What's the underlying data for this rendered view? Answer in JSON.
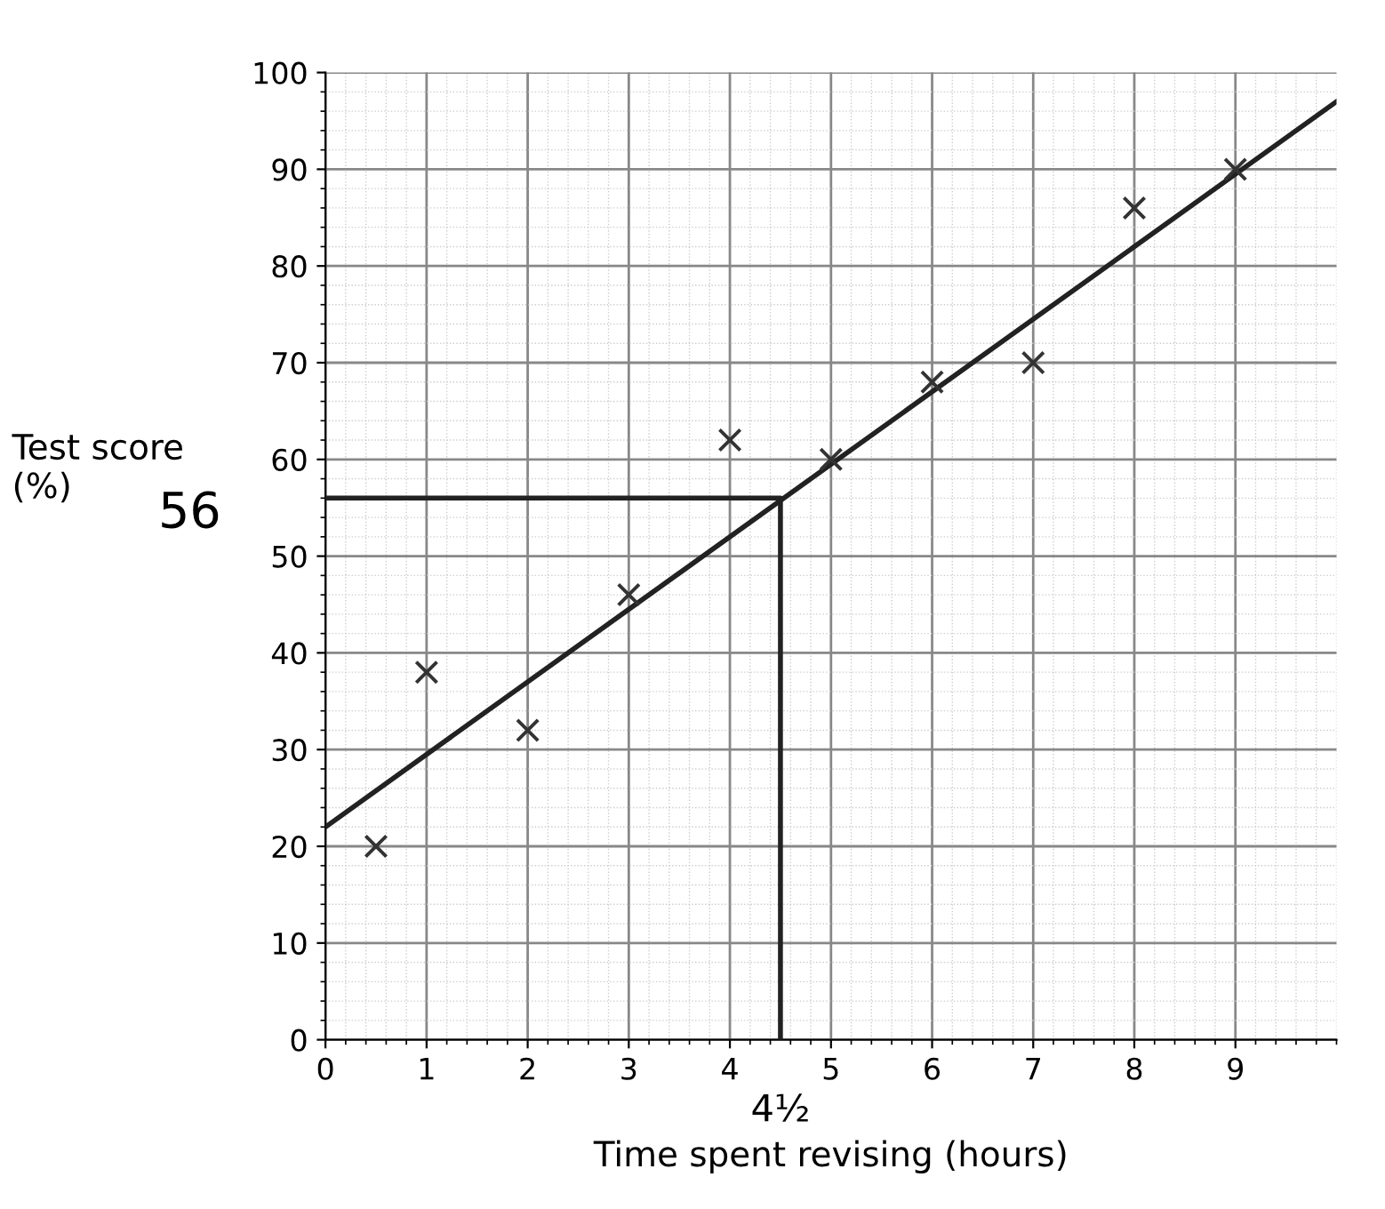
{
  "chart_data": {
    "type": "scatter",
    "xlabel": "Time spent revising (hours)",
    "ylabel": "Test score\n(%)",
    "xlim": [
      0,
      10
    ],
    "ylim": [
      0,
      100
    ],
    "xticks": [
      0,
      1,
      2,
      3,
      4,
      5,
      6,
      7,
      8,
      9
    ],
    "yticks": [
      0,
      10,
      20,
      30,
      40,
      50,
      60,
      70,
      80,
      90,
      100
    ],
    "grid": true,
    "marker": "cross",
    "legend": false,
    "series": [
      {
        "color": "#333333",
        "x": [
          0.5,
          1,
          2,
          3,
          4,
          5,
          6,
          7,
          8,
          9
        ],
        "values": [
          20,
          38,
          32,
          46,
          62,
          60,
          68,
          70,
          86,
          90
        ]
      },
      {
        "type": "line",
        "marker": "none",
        "color": "#222222",
        "x": [
          0,
          10
        ],
        "values": [
          22,
          97
        ]
      },
      {
        "type": "line",
        "marker": "none",
        "color": "#222222",
        "x": [
          0,
          4.5,
          4.5
        ],
        "values": [
          56,
          56,
          0
        ]
      }
    ],
    "annotations": [
      {
        "text": "56",
        "x": 0,
        "y": 56
      },
      {
        "text": "4½",
        "x": 4.5,
        "y": 0
      }
    ]
  }
}
